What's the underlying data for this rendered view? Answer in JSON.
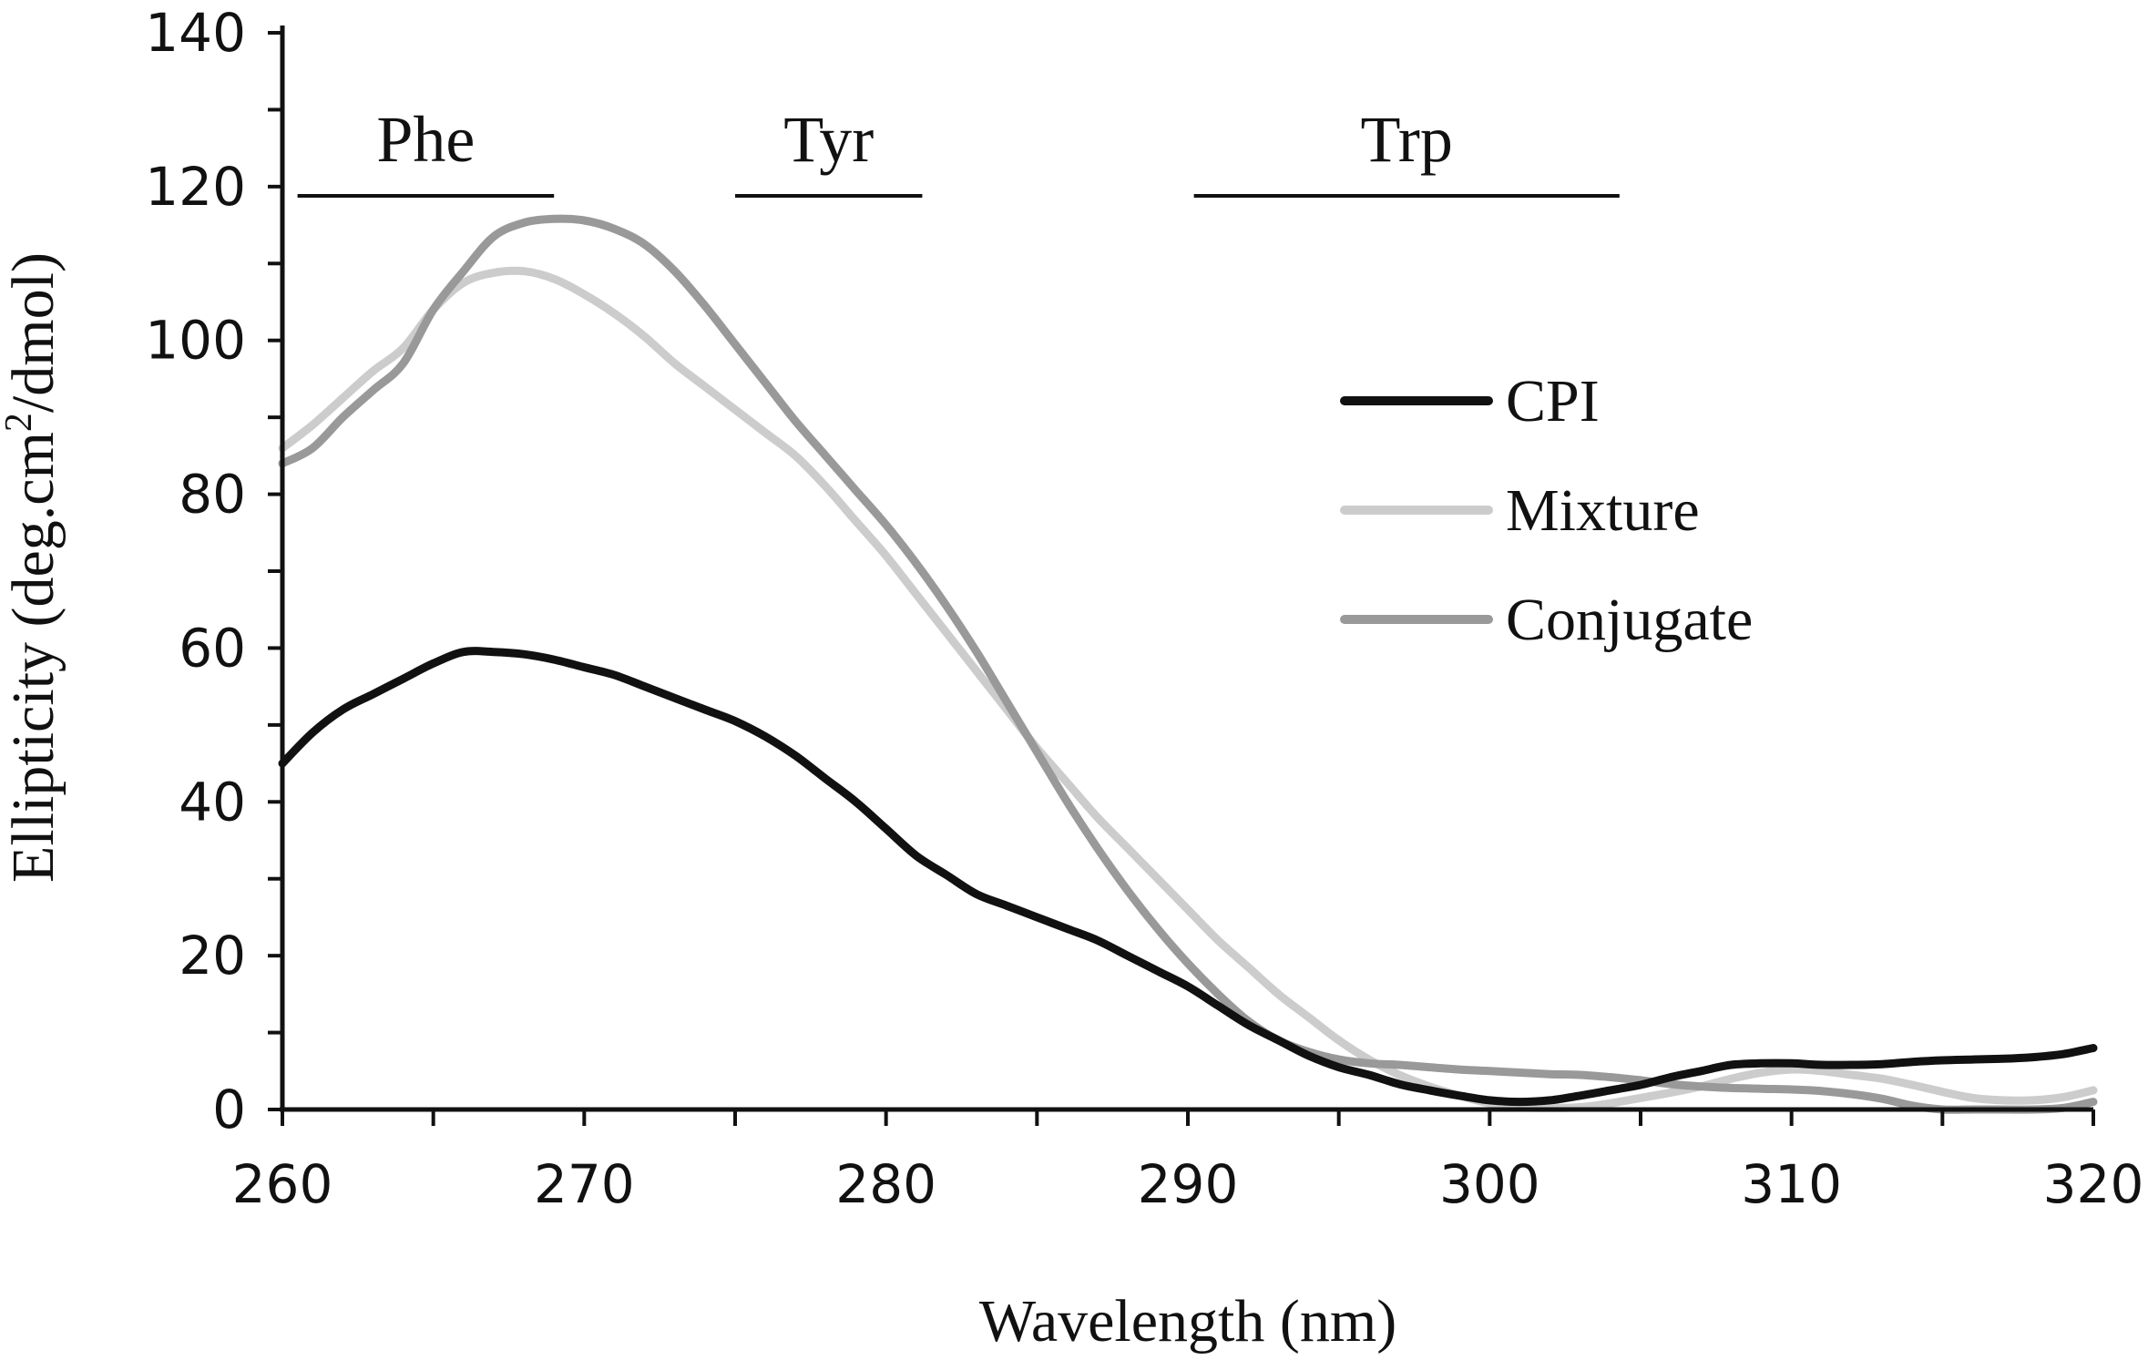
{
  "chart_data": {
    "type": "line",
    "xlabel": "Wavelength (nm)",
    "ylabel_parts": [
      "Ellipticity (deg.cm",
      "2",
      "/dmol)"
    ],
    "xlim": [
      260,
      320
    ],
    "ylim": [
      0,
      140
    ],
    "x_ticks": [
      260,
      270,
      280,
      290,
      300,
      310,
      320
    ],
    "y_ticks": [
      0,
      20,
      40,
      60,
      80,
      100,
      120,
      140
    ],
    "legend_placement": "right",
    "grid": false,
    "regions": [
      {
        "label": "Phe",
        "start": 260.5,
        "end": 269
      },
      {
        "label": "Tyr",
        "start": 275,
        "end": 281.2
      },
      {
        "label": "Trp",
        "start": 290.2,
        "end": 304.3
      }
    ],
    "series": [
      {
        "name": "CPI",
        "color": "#111111",
        "points": [
          [
            260,
            45
          ],
          [
            261,
            49
          ],
          [
            262,
            52
          ],
          [
            263,
            54
          ],
          [
            264,
            56
          ],
          [
            265,
            58
          ],
          [
            266,
            59.5
          ],
          [
            267,
            59.5
          ],
          [
            268,
            59.2
          ],
          [
            269,
            58.5
          ],
          [
            270,
            57.5
          ],
          [
            271,
            56.5
          ],
          [
            272,
            55
          ],
          [
            273,
            53.5
          ],
          [
            274,
            52
          ],
          [
            275,
            50.5
          ],
          [
            276,
            48.5
          ],
          [
            277,
            46
          ],
          [
            278,
            43
          ],
          [
            279,
            40
          ],
          [
            280,
            36.5
          ],
          [
            281,
            33
          ],
          [
            282,
            30.5
          ],
          [
            283,
            28
          ],
          [
            284,
            26.5
          ],
          [
            285,
            25
          ],
          [
            286,
            23.5
          ],
          [
            287,
            22
          ],
          [
            288,
            20
          ],
          [
            289,
            18
          ],
          [
            290,
            16
          ],
          [
            291,
            13.5
          ],
          [
            292,
            11
          ],
          [
            293,
            9
          ],
          [
            294,
            7
          ],
          [
            295,
            5.5
          ],
          [
            296,
            4.5
          ],
          [
            297,
            3.3
          ],
          [
            298,
            2.5
          ],
          [
            299,
            1.8
          ],
          [
            300,
            1.2
          ],
          [
            301,
            1
          ],
          [
            302,
            1.2
          ],
          [
            303,
            1.8
          ],
          [
            304,
            2.5
          ],
          [
            305,
            3.2
          ],
          [
            306,
            4.2
          ],
          [
            307,
            5
          ],
          [
            308,
            5.8
          ],
          [
            309,
            6
          ],
          [
            310,
            6
          ],
          [
            311,
            5.8
          ],
          [
            312,
            5.8
          ],
          [
            313,
            5.9
          ],
          [
            314,
            6.2
          ],
          [
            315,
            6.4
          ],
          [
            316,
            6.5
          ],
          [
            317,
            6.6
          ],
          [
            318,
            6.8
          ],
          [
            319,
            7.2
          ],
          [
            320,
            8
          ]
        ]
      },
      {
        "name": "Mixture",
        "color": "#cccccc",
        "points": [
          [
            260,
            86
          ],
          [
            261,
            89
          ],
          [
            262,
            92.5
          ],
          [
            263,
            96
          ],
          [
            264,
            99
          ],
          [
            265,
            104
          ],
          [
            266,
            107.5
          ],
          [
            267,
            108.8
          ],
          [
            268,
            109
          ],
          [
            269,
            108
          ],
          [
            270,
            106
          ],
          [
            271,
            103.5
          ],
          [
            272,
            100.5
          ],
          [
            273,
            97
          ],
          [
            274,
            94
          ],
          [
            275,
            91
          ],
          [
            276,
            88
          ],
          [
            277,
            85
          ],
          [
            278,
            81
          ],
          [
            279,
            76.5
          ],
          [
            280,
            72
          ],
          [
            281,
            67
          ],
          [
            282,
            62
          ],
          [
            283,
            57
          ],
          [
            284,
            52
          ],
          [
            285,
            47
          ],
          [
            286,
            42.5
          ],
          [
            287,
            38
          ],
          [
            288,
            34
          ],
          [
            289,
            30
          ],
          [
            290,
            26
          ],
          [
            291,
            22
          ],
          [
            292,
            18.5
          ],
          [
            293,
            15
          ],
          [
            294,
            12
          ],
          [
            295,
            9
          ],
          [
            296,
            6.5
          ],
          [
            297,
            4.5
          ],
          [
            298,
            3
          ],
          [
            299,
            1.8
          ],
          [
            300,
            0.8
          ],
          [
            301,
            0.3
          ],
          [
            302,
            0.2
          ],
          [
            303,
            0.3
          ],
          [
            304,
            0.8
          ],
          [
            305,
            1.5
          ],
          [
            306,
            2.2
          ],
          [
            307,
            3
          ],
          [
            308,
            4
          ],
          [
            309,
            4.8
          ],
          [
            310,
            5.2
          ],
          [
            311,
            5
          ],
          [
            312,
            4.5
          ],
          [
            313,
            4
          ],
          [
            314,
            3.2
          ],
          [
            315,
            2.3
          ],
          [
            316,
            1.5
          ],
          [
            317,
            1.2
          ],
          [
            318,
            1.2
          ],
          [
            319,
            1.6
          ],
          [
            320,
            2.5
          ]
        ]
      },
      {
        "name": "Conjugate",
        "color": "#999999",
        "points": [
          [
            260,
            84
          ],
          [
            261,
            86
          ],
          [
            262,
            90
          ],
          [
            263,
            93.5
          ],
          [
            264,
            97
          ],
          [
            265,
            104
          ],
          [
            266,
            109
          ],
          [
            267,
            113.5
          ],
          [
            268,
            115.3
          ],
          [
            269,
            115.8
          ],
          [
            270,
            115.6
          ],
          [
            271,
            114.5
          ],
          [
            272,
            112.5
          ],
          [
            273,
            109
          ],
          [
            274,
            104.5
          ],
          [
            275,
            99.5
          ],
          [
            276,
            94.5
          ],
          [
            277,
            89.5
          ],
          [
            278,
            85
          ],
          [
            279,
            80.5
          ],
          [
            280,
            76
          ],
          [
            281,
            71
          ],
          [
            282,
            65.5
          ],
          [
            283,
            59.5
          ],
          [
            284,
            53
          ],
          [
            285,
            46.5
          ],
          [
            286,
            40
          ],
          [
            287,
            34
          ],
          [
            288,
            28.5
          ],
          [
            289,
            23.5
          ],
          [
            290,
            19
          ],
          [
            291,
            15
          ],
          [
            292,
            11.5
          ],
          [
            293,
            9
          ],
          [
            294,
            7.5
          ],
          [
            295,
            6.5
          ],
          [
            296,
            6
          ],
          [
            297,
            5.8
          ],
          [
            298,
            5.5
          ],
          [
            299,
            5.2
          ],
          [
            300,
            5
          ],
          [
            301,
            4.8
          ],
          [
            302,
            4.6
          ],
          [
            303,
            4.5
          ],
          [
            304,
            4.2
          ],
          [
            305,
            3.8
          ],
          [
            306,
            3.3
          ],
          [
            307,
            3
          ],
          [
            308,
            2.8
          ],
          [
            309,
            2.7
          ],
          [
            310,
            2.6
          ],
          [
            311,
            2.4
          ],
          [
            312,
            2
          ],
          [
            313,
            1.4
          ],
          [
            314,
            0.5
          ],
          [
            315,
            0
          ],
          [
            316,
            0
          ],
          [
            317,
            0
          ],
          [
            318,
            0
          ],
          [
            319,
            0.2
          ],
          [
            320,
            1
          ]
        ]
      }
    ]
  }
}
